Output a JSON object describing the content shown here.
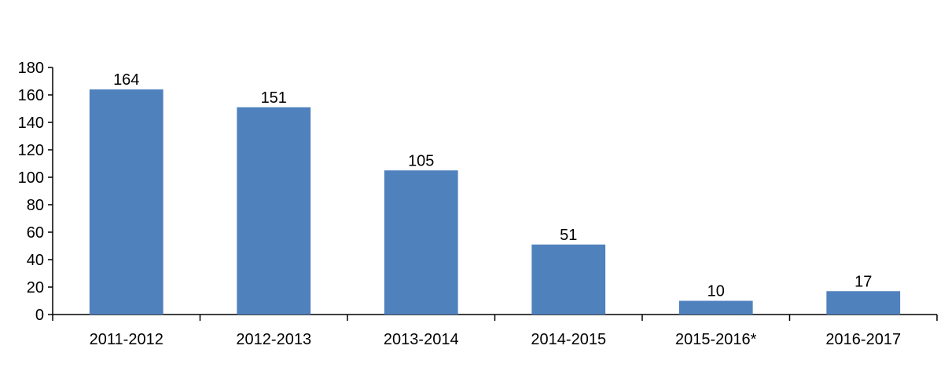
{
  "chart_data": {
    "type": "bar",
    "categories": [
      "2011-2012",
      "2012-2013",
      "2013-2014",
      "2014-2015",
      "2015-2016*",
      "2016-2017"
    ],
    "values": [
      164,
      151,
      105,
      51,
      10,
      17
    ],
    "title": "",
    "xlabel": "",
    "ylabel": "",
    "ylim": [
      0,
      180
    ],
    "yticks": [
      0,
      20,
      40,
      60,
      80,
      100,
      120,
      140,
      160,
      180
    ],
    "grid": false,
    "legend": "none",
    "bar_color": "#4f81bd",
    "axis_color": "#000000"
  }
}
